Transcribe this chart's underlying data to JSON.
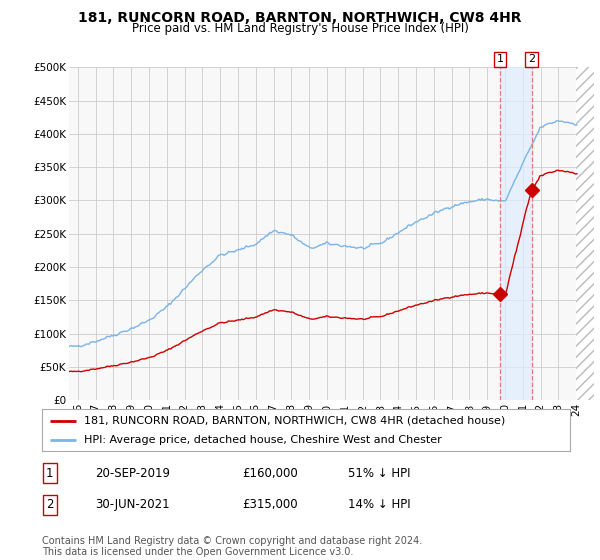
{
  "title": "181, RUNCORN ROAD, BARNTON, NORTHWICH, CW8 4HR",
  "subtitle": "Price paid vs. HM Land Registry's House Price Index (HPI)",
  "ylabel_ticks": [
    "£0",
    "£50K",
    "£100K",
    "£150K",
    "£200K",
    "£250K",
    "£300K",
    "£350K",
    "£400K",
    "£450K",
    "£500K"
  ],
  "ytick_values": [
    0,
    50000,
    100000,
    150000,
    200000,
    250000,
    300000,
    350000,
    400000,
    450000,
    500000
  ],
  "ylim": [
    0,
    500000
  ],
  "xlim_start": 1995.5,
  "xlim_end": 2025.0,
  "hpi_color": "#7ab4e8",
  "price_color": "#cc0000",
  "vline_color": "#e87878",
  "shade_color": "#ddeeff",
  "legend_label_price": "181, RUNCORN ROAD, BARNTON, NORTHWICH, CW8 4HR (detached house)",
  "legend_label_hpi": "HPI: Average price, detached house, Cheshire West and Chester",
  "transaction1_label": "1",
  "transaction1_date": "20-SEP-2019",
  "transaction1_price": "£160,000",
  "transaction1_hpi": "51% ↓ HPI",
  "transaction1_x": 2019.72,
  "transaction1_y": 160000,
  "transaction2_label": "2",
  "transaction2_date": "30-JUN-2021",
  "transaction2_price": "£315,000",
  "transaction2_hpi": "14% ↓ HPI",
  "transaction2_x": 2021.5,
  "transaction2_y": 315000,
  "footer": "Contains HM Land Registry data © Crown copyright and database right 2024.\nThis data is licensed under the Open Government Licence v3.0.",
  "title_fontsize": 10,
  "subtitle_fontsize": 8.5,
  "tick_fontsize": 7.5,
  "legend_fontsize": 8,
  "table_fontsize": 8.5,
  "footer_fontsize": 7,
  "background_color": "#ffffff",
  "plot_bg_color": "#f8f8f8",
  "grid_color": "#cccccc"
}
